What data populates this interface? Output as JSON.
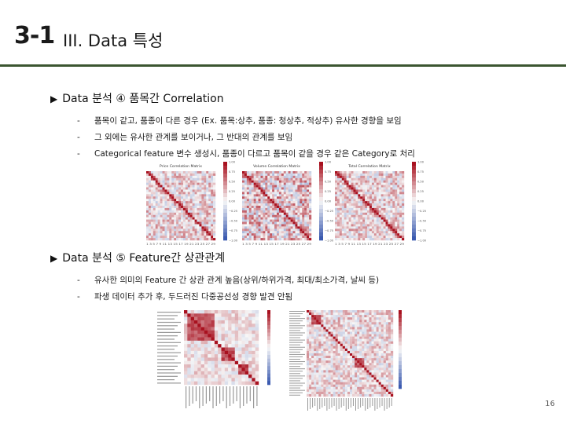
{
  "slide": {
    "number": "3-1",
    "title": "III. Data 특성",
    "page": "16"
  },
  "section1": {
    "marker": "▶",
    "heading": "Data 분석 ④ 품목간 Correlation",
    "bullets": [
      "품목이 같고, 품종이 다른 경우 (Ex. 품목:상추, 품종: 청상추, 적상추) 유사한 경향을 보임",
      "그 외에는 유사한 관계를 보이거나, 그 반대의 관계를 보임",
      "Categorical feature 변수 생성시, 품종이 다르고 품목이 같을 경우 같은 Category로 처리"
    ],
    "heatmaps": [
      {
        "title": "Price Correlation Matrix"
      },
      {
        "title": "Volume Correlation Matrix"
      },
      {
        "title": "Total Correlation Matrix"
      }
    ],
    "colorbar_ticks": [
      "1.00",
      "0.75",
      "0.50",
      "0.25",
      "0.00",
      "−0.25",
      "−0.50",
      "−0.75",
      "−1.00"
    ],
    "x_ticks": "1 3 5 7 9 11 13 15 17 19 21 23 25 27 29"
  },
  "section2": {
    "marker": "▶",
    "heading": "Data 분석 ⑤ Feature간 상관관계",
    "bullets": [
      "유사한 의미의 Feature 간 상관 관계 높음(상위/하위가격, 최대/최소가격, 날씨 등)",
      "파생 데이터 추가 후, 두드러진 다중공선성 경향 발견 안됨"
    ]
  },
  "colors": {
    "divider": "#3b5530",
    "diag": "#a8111f",
    "positive": "#d6604d",
    "negative": "#4a6fc0"
  }
}
